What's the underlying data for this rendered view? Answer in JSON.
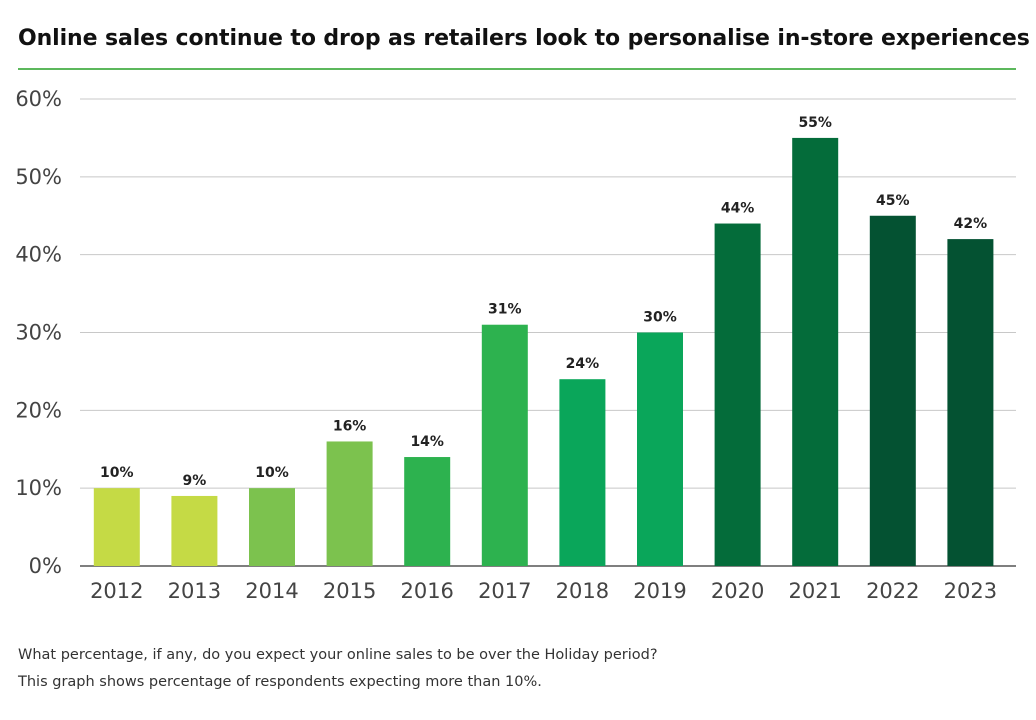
{
  "colors": {
    "title_rule": "#5cb85c",
    "gridline": "#c8c8c8",
    "axis": "#555555",
    "tick_text": "#444444",
    "label_text": "#222222"
  },
  "chart_data": {
    "type": "bar",
    "title": "Online sales continue to drop as retailers look to personalise in-store experiences",
    "xlabel": "",
    "ylabel": "",
    "categories": [
      "2012",
      "2013",
      "2014",
      "2015",
      "2016",
      "2017",
      "2018",
      "2019",
      "2020",
      "2021",
      "2022",
      "2023"
    ],
    "values": [
      10,
      9,
      10,
      16,
      14,
      31,
      24,
      30,
      44,
      55,
      45,
      42
    ],
    "data_labels": [
      "10%",
      "9%",
      "10%",
      "16%",
      "14%",
      "31%",
      "24%",
      "30%",
      "44%",
      "55%",
      "45%",
      "42%"
    ],
    "bar_colors": [
      "#c5da45",
      "#c5da45",
      "#7cc24e",
      "#7cc24e",
      "#2db24f",
      "#2db24f",
      "#0aa65a",
      "#0aa65a",
      "#046c3a",
      "#046c3a",
      "#045232",
      "#045232"
    ],
    "ylim": [
      0,
      60
    ],
    "yticks": [
      0,
      10,
      20,
      30,
      40,
      50,
      60
    ],
    "ytick_labels": [
      "0%",
      "10%",
      "20%",
      "30%",
      "40%",
      "50%",
      "60%"
    ],
    "grid": true
  },
  "footnotes": {
    "question": "What percentage, if any, do you expect your online sales to be over the Holiday period?",
    "explanation": "This graph shows percentage of respondents expecting more than 10%."
  }
}
